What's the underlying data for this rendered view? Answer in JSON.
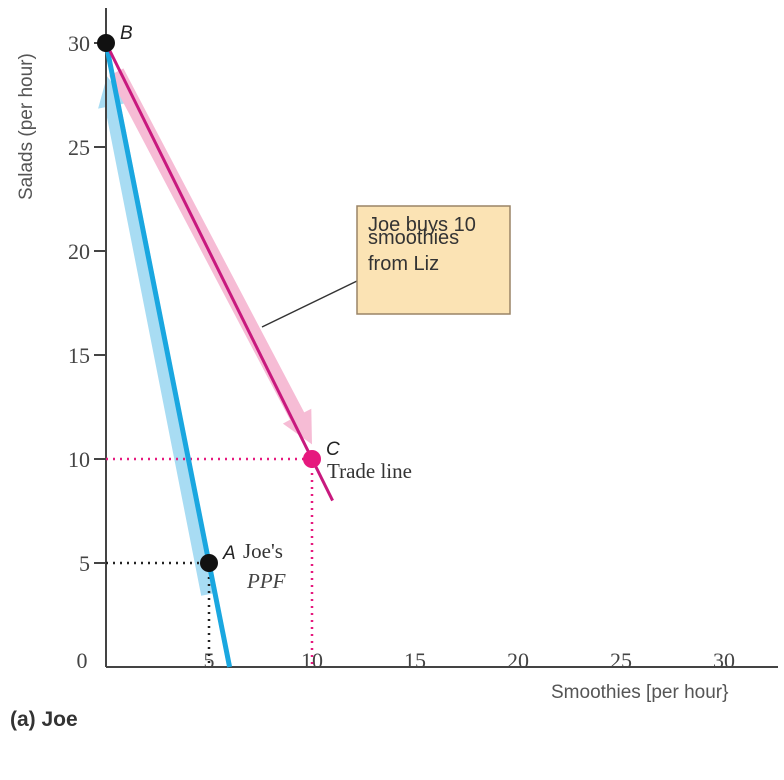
{
  "chart_data": {
    "type": "line",
    "panel_label": "(a) Joe",
    "xlabel": "Smoothies [per hour}",
    "ylabel": "Salads (per hour)",
    "xlim": [
      0,
      33
    ],
    "ylim": [
      0,
      31
    ],
    "x_ticks": [
      {
        "value": 0,
        "label": "0"
      },
      {
        "value": 5,
        "label": "5"
      },
      {
        "value": 10,
        "label": "10"
      },
      {
        "value": 15,
        "label": "15"
      },
      {
        "value": 20,
        "label": "20"
      },
      {
        "value": 25,
        "label": "25"
      },
      {
        "value": 30,
        "label": "30"
      }
    ],
    "y_ticks": [
      {
        "value": 5,
        "label": "5"
      },
      {
        "value": 10,
        "label": "10"
      },
      {
        "value": 15,
        "label": "15"
      },
      {
        "value": 20,
        "label": "20"
      },
      {
        "value": 25,
        "label": "25"
      },
      {
        "value": 30,
        "label": "30"
      }
    ],
    "series": [
      {
        "name": "Joe's PPF",
        "color": "#1aa7e0",
        "x": [
          0,
          6
        ],
        "y": [
          30,
          0
        ]
      },
      {
        "name": "Trade line",
        "color": "#c8197e",
        "x": [
          0,
          11
        ],
        "y": [
          30,
          8
        ]
      }
    ],
    "points": [
      {
        "label": "A",
        "x": 5,
        "y": 5,
        "color": "#111111"
      },
      {
        "label": "B",
        "x": 0,
        "y": 30,
        "color": "#111111"
      },
      {
        "label": "C",
        "x": 10,
        "y": 10,
        "color": "#e6197e"
      }
    ],
    "annotations": {
      "joes": "Joe's",
      "ppf": "PPF",
      "trade_line": "Trade line",
      "callout_line1": "Joe buys 10",
      "callout_line2": "smoothies",
      "callout_line3": "from Liz"
    },
    "colors": {
      "ppf": "#1aa7e0",
      "ppf_glow": "#a8dcf3",
      "trade": "#c8197e",
      "trade_glow": "#f6bcd5",
      "highlight": "#e6197e",
      "callout_fill": "#fbe3b4",
      "callout_border": "#9a8466"
    }
  }
}
